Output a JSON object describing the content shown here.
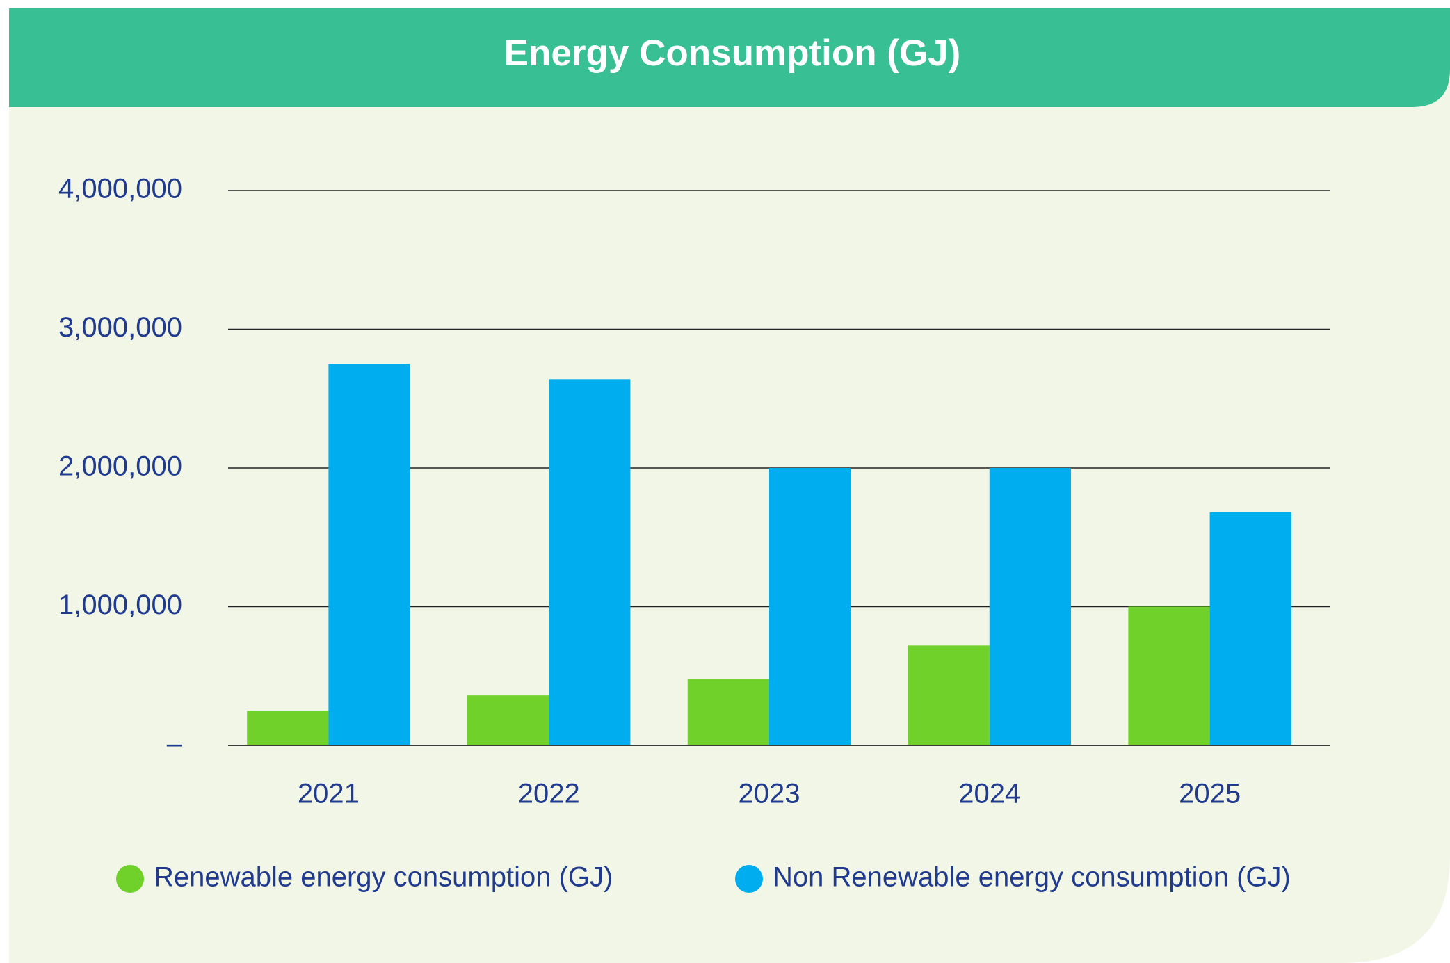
{
  "chart_data": {
    "type": "bar",
    "title": "Energy Consumption (GJ)",
    "categories": [
      "2021",
      "2022",
      "2023",
      "2024",
      "2025"
    ],
    "series": [
      {
        "name": "Renewable energy consumption (GJ)",
        "color": "#6fd12a",
        "values": [
          250000,
          360000,
          480000,
          720000,
          1000000
        ]
      },
      {
        "name": "Non Renewable energy consumption (GJ)",
        "color": "#00adef",
        "values": [
          2750000,
          2640000,
          2000000,
          2000000,
          1680000
        ]
      }
    ],
    "ylim": [
      0,
      4000000
    ],
    "yticks": [
      {
        "value": 0,
        "label": "–"
      },
      {
        "value": 1000000,
        "label": "1,000,000"
      },
      {
        "value": 2000000,
        "label": "2,000,000"
      },
      {
        "value": 3000000,
        "label": "3,000,000"
      },
      {
        "value": 4000000,
        "label": "4,000,000"
      }
    ],
    "grid": true
  }
}
